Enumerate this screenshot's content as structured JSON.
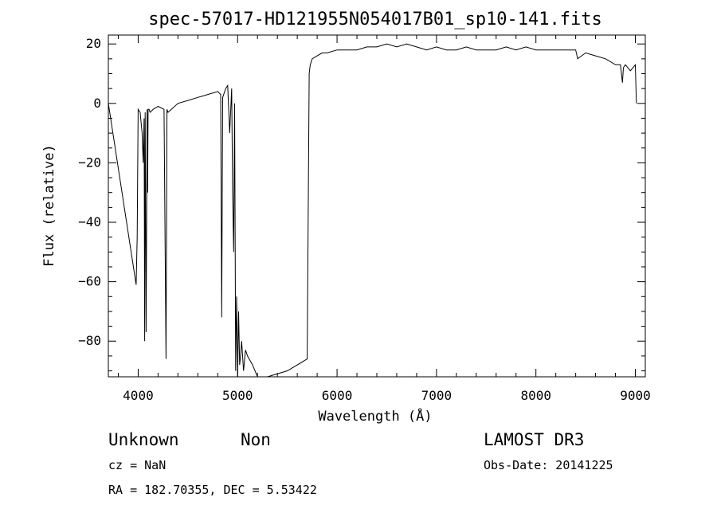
{
  "chart_data": {
    "type": "line",
    "title": "spec-57017-HD121955N054017B01_sp10-141.fits",
    "xlabel": "Wavelength (Å)",
    "ylabel": "Flux (relative)",
    "xlim": [
      3700,
      9100
    ],
    "ylim": [
      -92,
      23
    ],
    "x_ticks": [
      4000,
      5000,
      6000,
      7000,
      8000,
      9000
    ],
    "y_ticks": [
      20,
      0,
      -20,
      -40,
      -60,
      -80
    ],
    "grid": false,
    "series": [
      {
        "x": [
          3700,
          3980,
          3990,
          4000,
          4020,
          4040,
          4050,
          4060,
          4065,
          4070,
          4080,
          4090,
          4095,
          4100,
          4110,
          4120,
          4150,
          4200,
          4260,
          4280,
          4290,
          4300,
          4400,
          4500,
          4600,
          4700,
          4800,
          4830,
          4840,
          4850,
          4880,
          4900,
          4920,
          4940,
          4950,
          4960,
          4970,
          4980,
          4990,
          5000,
          5010,
          5020,
          5030,
          5040,
          5060,
          5080,
          5100,
          5150,
          5200,
          5220,
          5300,
          5500,
          5700,
          5720,
          5730,
          5750,
          5800,
          5850,
          5900,
          6000,
          6100,
          6200,
          6300,
          6400,
          6500,
          6600,
          6700,
          6800,
          6900,
          7000,
          7100,
          7200,
          7300,
          7400,
          7500,
          7600,
          7700,
          7800,
          7900,
          8000,
          8100,
          8200,
          8300,
          8400,
          8420,
          8500,
          8600,
          8700,
          8800,
          8850,
          8870,
          8880,
          8900,
          8950,
          9000,
          9010
        ],
        "y": [
          0,
          -61,
          -45,
          -2,
          -3,
          -10,
          -20,
          -5,
          -80,
          -3,
          -77,
          -2,
          -30,
          -2,
          -2,
          -3,
          -2,
          -1,
          -2,
          -86,
          -2,
          -3,
          0,
          1,
          2,
          3,
          4,
          3,
          -72,
          2,
          5,
          6,
          -10,
          5,
          -30,
          -50,
          0,
          -90,
          -65,
          -92,
          -70,
          -88,
          -85,
          -80,
          -90,
          -83,
          -85,
          -88,
          -92,
          -92,
          -92,
          -90,
          -86,
          10,
          13,
          15,
          16,
          17,
          17,
          18,
          18,
          18,
          19,
          19,
          20,
          19,
          20,
          19,
          18,
          19,
          18,
          18,
          19,
          18,
          18,
          18,
          19,
          18,
          19,
          18,
          18,
          18,
          18,
          18,
          15,
          17,
          16,
          15,
          13,
          13,
          7,
          12,
          13,
          11,
          13,
          0
        ]
      }
    ]
  },
  "info": {
    "object_name": "Unknown",
    "object_class": "Non",
    "survey": "LAMOST DR3",
    "cz": "cz = NaN",
    "obs_date": "Obs-Date: 20141225",
    "coords": "RA = 182.70355, DEC =   5.53422"
  }
}
